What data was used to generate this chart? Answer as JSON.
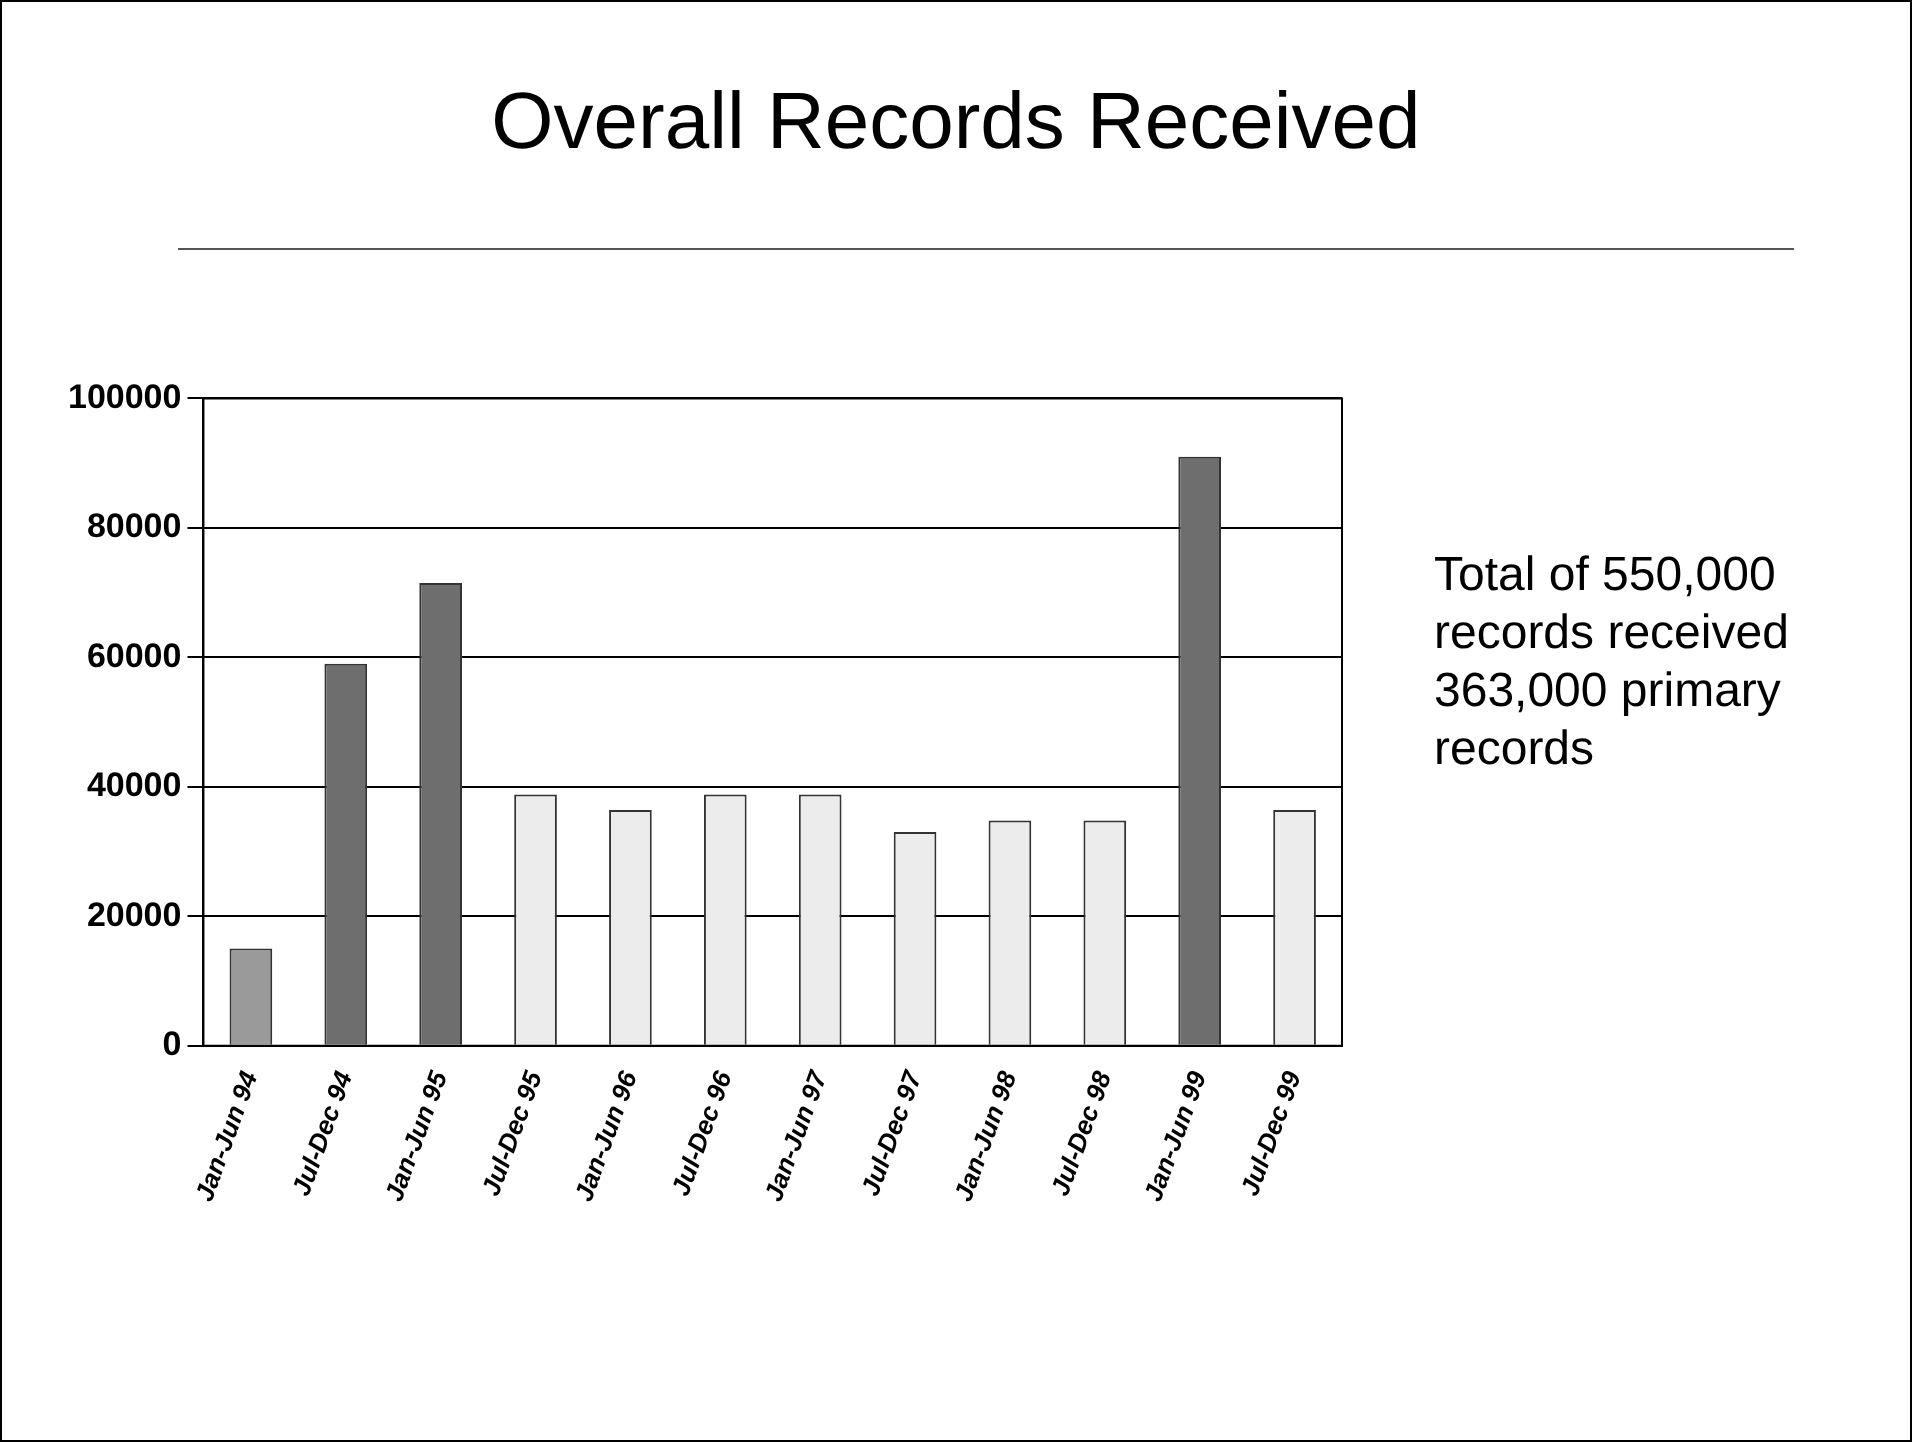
{
  "chart_data": {
    "type": "bar",
    "title": "Overall Records Received",
    "categories": [
      "Jan-Jun 94",
      "Jul-Dec 94",
      "Jan-Jun 95",
      "Jul-Dec 95",
      "Jan-Jun 96",
      "Jul-Dec 96",
      "Jan-Jun 97",
      "Jul-Dec 97",
      "Jan-Jun 98",
      "Jul-Dec 98",
      "Jan-Jun 99",
      "Jul-Dec 99"
    ],
    "values": [
      15000,
      59000,
      71500,
      38800,
      36400,
      38800,
      38800,
      33000,
      34800,
      34800,
      91000,
      36400
    ],
    "colors": [
      "#9a9a9a",
      "#6e6e6e",
      "#6e6e6e",
      "#ececec",
      "#ececec",
      "#ececec",
      "#ececec",
      "#ececec",
      "#ececec",
      "#ececec",
      "#6e6e6e",
      "#ececec"
    ],
    "ylim": [
      0,
      100000
    ],
    "yticks": [
      0,
      20000,
      40000,
      60000,
      80000,
      100000
    ],
    "grid": "y",
    "annotations": [
      "Total of 550,000 records received 363,000 primary records"
    ]
  }
}
